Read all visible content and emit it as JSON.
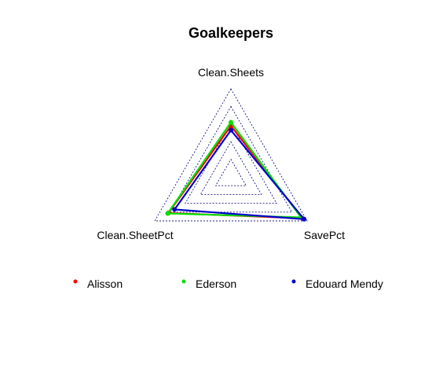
{
  "chart_data": {
    "type": "radar",
    "title": "Goalkeepers",
    "axes": [
      "Clean.Sheets",
      "SavePct",
      "Clean.SheetPct"
    ],
    "scale_max": 1,
    "grid_levels": 5,
    "series": [
      {
        "name": "Alisson",
        "color": "#ff0000",
        "values": [
          0.58,
          0.94,
          0.82
        ]
      },
      {
        "name": "Ederson",
        "color": "#00e000",
        "values": [
          0.62,
          0.92,
          0.83
        ]
      },
      {
        "name": "Edouard Mendy",
        "color": "#0000cc",
        "values": [
          0.53,
          0.96,
          0.74
        ]
      }
    ],
    "legend_position": "bottom"
  }
}
